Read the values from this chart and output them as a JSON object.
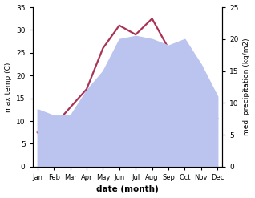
{
  "months": [
    "Jan",
    "Feb",
    "Mar",
    "Apr",
    "May",
    "Jun",
    "Jul",
    "Aug",
    "Sep",
    "Oct",
    "Nov",
    "Dec"
  ],
  "month_x": [
    0,
    1,
    2,
    3,
    4,
    5,
    6,
    7,
    8,
    9,
    10,
    11
  ],
  "temp": [
    7.5,
    9.0,
    13.0,
    17.0,
    26.0,
    31.0,
    29.0,
    32.5,
    26.0,
    19.0,
    13.0,
    10.5
  ],
  "precip": [
    9.0,
    8.0,
    8.0,
    12.0,
    15.0,
    20.0,
    20.5,
    20.0,
    19.0,
    20.0,
    16.0,
    11.0
  ],
  "temp_color": "#aa3355",
  "precip_fill_color": "#bbc4ef",
  "temp_ylim": [
    0,
    35
  ],
  "temp_yticks": [
    0,
    5,
    10,
    15,
    20,
    25,
    30,
    35
  ],
  "precip_ylim": [
    0,
    25
  ],
  "precip_yticks": [
    0,
    5,
    10,
    15,
    20,
    25
  ],
  "precip_ytick_labels": [
    "0",
    "5",
    "10",
    "15",
    "20",
    "25"
  ],
  "xlabel": "date (month)",
  "ylabel_left": "max temp (C)",
  "ylabel_right": "med. precipitation (kg/m2)",
  "bg_color": "#ffffff",
  "linewidth": 1.6
}
